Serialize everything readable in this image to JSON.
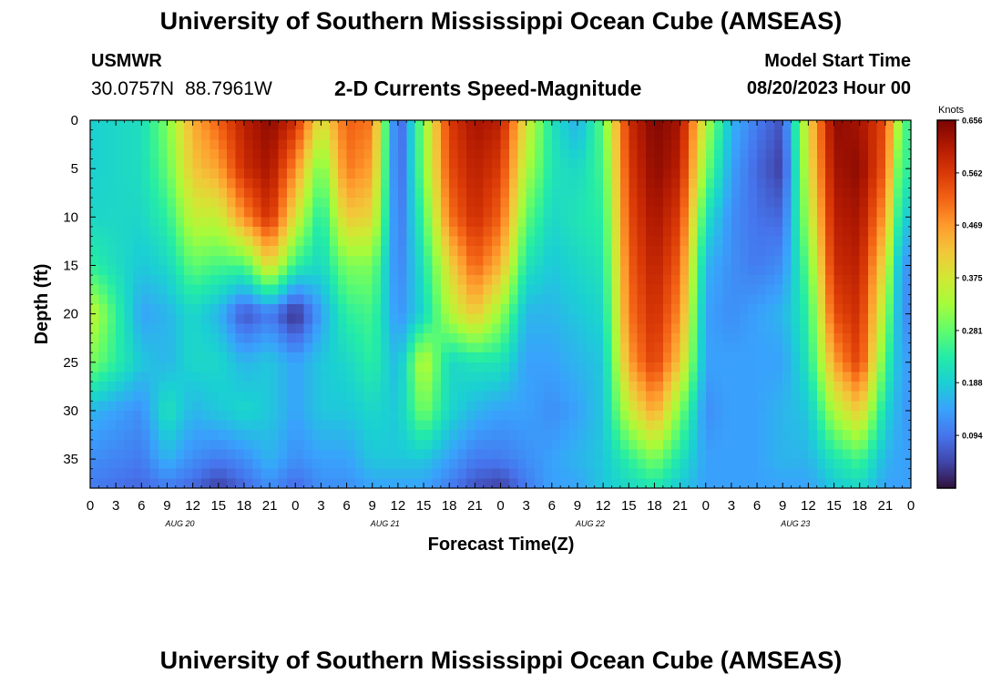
{
  "header": {
    "title": "University of Southern Mississippi Ocean Cube (AMSEAS)",
    "station": "USMWR",
    "lat": "30.0757N",
    "lon": "88.7961W",
    "subtitle": "2-D Currents Speed-Magnitude",
    "model_start_label": "Model Start Time",
    "model_start_value": "08/20/2023 Hour 00"
  },
  "footer": {
    "title": "University of Southern Mississippi Ocean Cube (AMSEAS)"
  },
  "chart_data": {
    "type": "heatmap",
    "title": "2-D Currents Speed-Magnitude",
    "xlabel": "Forecast Time(Z)",
    "ylabel": "Depth (ft)",
    "x_range_hours": [
      0,
      96
    ],
    "x_tick_step_hours": 3,
    "x_tick_labels": [
      "0",
      "3",
      "6",
      "9",
      "12",
      "15",
      "18",
      "21",
      "0",
      "3",
      "6",
      "9",
      "12",
      "15",
      "18",
      "21",
      "0",
      "3",
      "6",
      "9",
      "12",
      "15",
      "18",
      "21",
      "0",
      "3",
      "6",
      "9",
      "12",
      "15",
      "18",
      "21",
      "0"
    ],
    "day_labels": [
      {
        "label": "AUG 20",
        "hour": 10.5
      },
      {
        "label": "AUG 21",
        "hour": 34.5
      },
      {
        "label": "AUG 22",
        "hour": 58.5
      },
      {
        "label": "AUG 23",
        "hour": 82.5
      }
    ],
    "y_range_ft": [
      0,
      38
    ],
    "y_ticks": [
      0,
      5,
      10,
      15,
      20,
      25,
      30,
      35
    ],
    "y_tick_labels": [
      "0",
      "5",
      "10",
      "15",
      "20",
      "25",
      "30",
      "35"
    ],
    "colorbar": {
      "unit": "Knots",
      "range": [
        0,
        0.656
      ],
      "tick_labels": [
        "0.656",
        "0.562",
        "0.469",
        "0.375",
        "0.281",
        "0.188",
        "0.094"
      ],
      "tick_values": [
        0.656,
        0.562,
        0.469,
        0.375,
        0.281,
        0.188,
        0.094
      ],
      "colormap": [
        "#30123b",
        "#4145ab",
        "#4675ed",
        "#39a2fc",
        "#1bcfd4",
        "#24eca6",
        "#61fc6c",
        "#a4fc3b",
        "#d1e834",
        "#f3c63a",
        "#fe9b2d",
        "#f36315",
        "#d93806",
        "#b11901",
        "#7a0403"
      ]
    },
    "grid": {
      "depths_ft": [
        0,
        5,
        10,
        15,
        20,
        25,
        30,
        35,
        38
      ],
      "hours": [
        0,
        6,
        9,
        12,
        15,
        18,
        21,
        24,
        27,
        30,
        33,
        36,
        39,
        42,
        45,
        48,
        51,
        54,
        57,
        60,
        63,
        66,
        69,
        72,
        75,
        78,
        81,
        84,
        87,
        90,
        93,
        95,
        96
      ],
      "speeds_knots_by_depth": [
        [
          0.19,
          0.21,
          0.3,
          0.45,
          0.52,
          0.6,
          0.64,
          0.58,
          0.38,
          0.52,
          0.5,
          0.05,
          0.31,
          0.56,
          0.62,
          0.6,
          0.38,
          0.22,
          0.15,
          0.28,
          0.58,
          0.65,
          0.62,
          0.35,
          0.16,
          0.1,
          0.06,
          0.4,
          0.64,
          0.62,
          0.54,
          0.28,
          0.24
        ],
        [
          0.19,
          0.21,
          0.28,
          0.42,
          0.46,
          0.58,
          0.62,
          0.48,
          0.28,
          0.5,
          0.46,
          0.06,
          0.3,
          0.54,
          0.6,
          0.56,
          0.34,
          0.22,
          0.2,
          0.26,
          0.56,
          0.64,
          0.6,
          0.3,
          0.14,
          0.08,
          0.04,
          0.38,
          0.62,
          0.64,
          0.52,
          0.22,
          0.28
        ],
        [
          0.2,
          0.2,
          0.24,
          0.36,
          0.36,
          0.48,
          0.58,
          0.38,
          0.22,
          0.42,
          0.4,
          0.08,
          0.26,
          0.5,
          0.58,
          0.52,
          0.28,
          0.2,
          0.22,
          0.24,
          0.54,
          0.62,
          0.56,
          0.22,
          0.12,
          0.09,
          0.08,
          0.34,
          0.6,
          0.62,
          0.46,
          0.18,
          0.2
        ],
        [
          0.24,
          0.18,
          0.2,
          0.28,
          0.26,
          0.26,
          0.4,
          0.24,
          0.2,
          0.3,
          0.3,
          0.1,
          0.22,
          0.4,
          0.52,
          0.44,
          0.22,
          0.18,
          0.2,
          0.22,
          0.52,
          0.6,
          0.52,
          0.16,
          0.12,
          0.1,
          0.12,
          0.28,
          0.58,
          0.6,
          0.38,
          0.12,
          0.14
        ],
        [
          0.36,
          0.14,
          0.16,
          0.2,
          0.16,
          0.06,
          0.1,
          0.02,
          0.14,
          0.24,
          0.26,
          0.12,
          0.2,
          0.34,
          0.42,
          0.32,
          0.16,
          0.16,
          0.18,
          0.2,
          0.5,
          0.58,
          0.48,
          0.14,
          0.12,
          0.14,
          0.16,
          0.24,
          0.54,
          0.58,
          0.32,
          0.12,
          0.12
        ],
        [
          0.3,
          0.18,
          0.16,
          0.2,
          0.2,
          0.16,
          0.18,
          0.14,
          0.18,
          0.2,
          0.24,
          0.16,
          0.36,
          0.2,
          0.22,
          0.22,
          0.14,
          0.14,
          0.16,
          0.18,
          0.46,
          0.56,
          0.42,
          0.14,
          0.14,
          0.14,
          0.14,
          0.22,
          0.46,
          0.56,
          0.26,
          0.14,
          0.14
        ],
        [
          0.16,
          0.12,
          0.22,
          0.16,
          0.18,
          0.2,
          0.18,
          0.14,
          0.18,
          0.18,
          0.2,
          0.18,
          0.3,
          0.2,
          0.16,
          0.14,
          0.14,
          0.12,
          0.14,
          0.18,
          0.36,
          0.46,
          0.3,
          0.12,
          0.14,
          0.14,
          0.16,
          0.18,
          0.34,
          0.42,
          0.2,
          0.14,
          0.12
        ],
        [
          0.12,
          0.1,
          0.16,
          0.12,
          0.1,
          0.12,
          0.16,
          0.12,
          0.14,
          0.14,
          0.18,
          0.18,
          0.18,
          0.14,
          0.1,
          0.1,
          0.12,
          0.14,
          0.16,
          0.18,
          0.24,
          0.3,
          0.22,
          0.14,
          0.14,
          0.14,
          0.16,
          0.16,
          0.22,
          0.26,
          0.16,
          0.14,
          0.14
        ],
        [
          0.1,
          0.08,
          0.1,
          0.08,
          0.04,
          0.08,
          0.12,
          0.08,
          0.12,
          0.12,
          0.14,
          0.14,
          0.14,
          0.1,
          0.06,
          0.04,
          0.1,
          0.14,
          0.14,
          0.18,
          0.2,
          0.22,
          0.18,
          0.14,
          0.14,
          0.14,
          0.14,
          0.14,
          0.18,
          0.2,
          0.14,
          0.14,
          0.14
        ]
      ]
    }
  }
}
